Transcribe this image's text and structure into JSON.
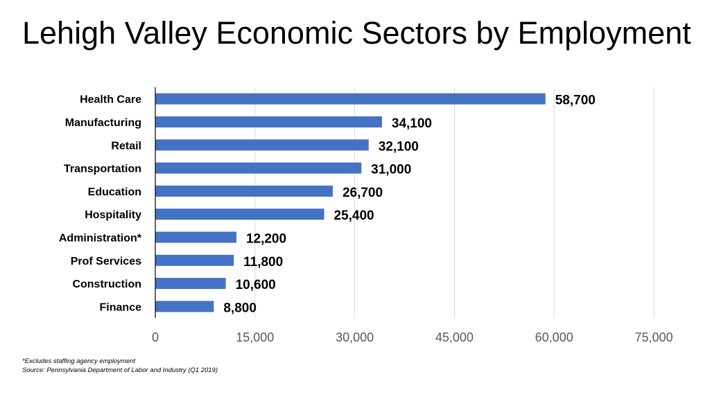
{
  "title": "Lehigh Valley Economic Sectors by Employment",
  "footnote": "*Excludes staffing agency employment",
  "source": "Source: Pennsylvania Department of Labor and Industry (Q1 2019)",
  "colors": {
    "bar": "#4472C4",
    "grid": "#D9D9D9",
    "axis": "#000000",
    "text": "#000000",
    "tick_text": "#595959"
  },
  "chart_data": {
    "type": "bar",
    "orientation": "horizontal",
    "title": "Lehigh Valley Economic Sectors by Employment",
    "xlabel": "",
    "ylabel": "",
    "categories": [
      "Health Care",
      "Manufacturing",
      "Retail",
      "Transportation",
      "Education",
      "Hospitality",
      "Administration*",
      "Prof Services",
      "Construction",
      "Finance"
    ],
    "values": [
      58700,
      34100,
      32100,
      31000,
      26700,
      25400,
      12200,
      11800,
      10600,
      8800
    ],
    "value_labels": [
      "58,700",
      "34,100",
      "32,100",
      "31,000",
      "26,700",
      "25,400",
      "12,200",
      "11,800",
      "10,600",
      "8,800"
    ],
    "xlim": [
      0,
      75000
    ],
    "xticks": [
      0,
      15000,
      30000,
      45000,
      60000,
      75000
    ],
    "xtick_labels": [
      "0",
      "15,000",
      "30,000",
      "45,000",
      "60,000",
      "75,000"
    ],
    "grid": true,
    "legend": "none"
  }
}
